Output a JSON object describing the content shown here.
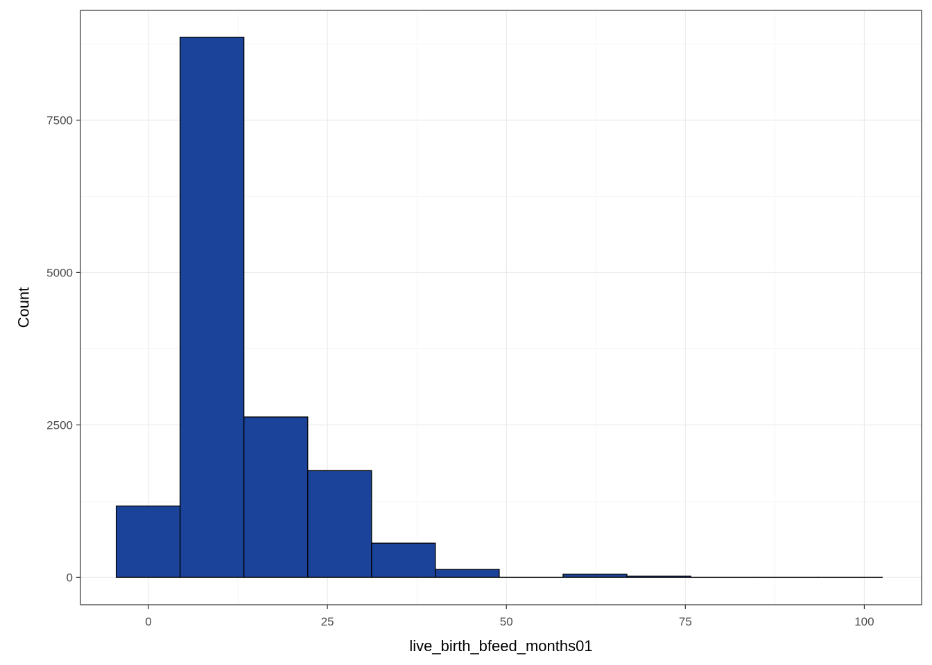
{
  "chart_data": {
    "type": "bar",
    "subtype": "histogram",
    "xlabel": "live_birth_bfeed_months01",
    "ylabel": "Count",
    "xlim": [
      -9.5,
      108.0
    ],
    "ylim": [
      -450,
      9300
    ],
    "x_ticks": [
      0,
      25,
      50,
      75,
      100
    ],
    "x_tick_labels": [
      "0",
      "25",
      "50",
      "75",
      "100"
    ],
    "y_ticks": [
      0,
      2500,
      5000,
      7500
    ],
    "y_tick_labels": [
      "0",
      "2500",
      "5000",
      "7500"
    ],
    "bin_edges": [
      -4.5,
      4.42,
      13.33,
      22.25,
      31.17,
      40.08,
      49.0,
      57.92,
      66.83,
      75.75,
      84.67,
      93.58,
      102.5
    ],
    "counts": [
      1170,
      8860,
      2630,
      1750,
      560,
      130,
      0,
      50,
      20,
      0,
      0,
      0
    ],
    "grid": true,
    "fill_color": "#1a4399",
    "edge_color": "#000000"
  }
}
